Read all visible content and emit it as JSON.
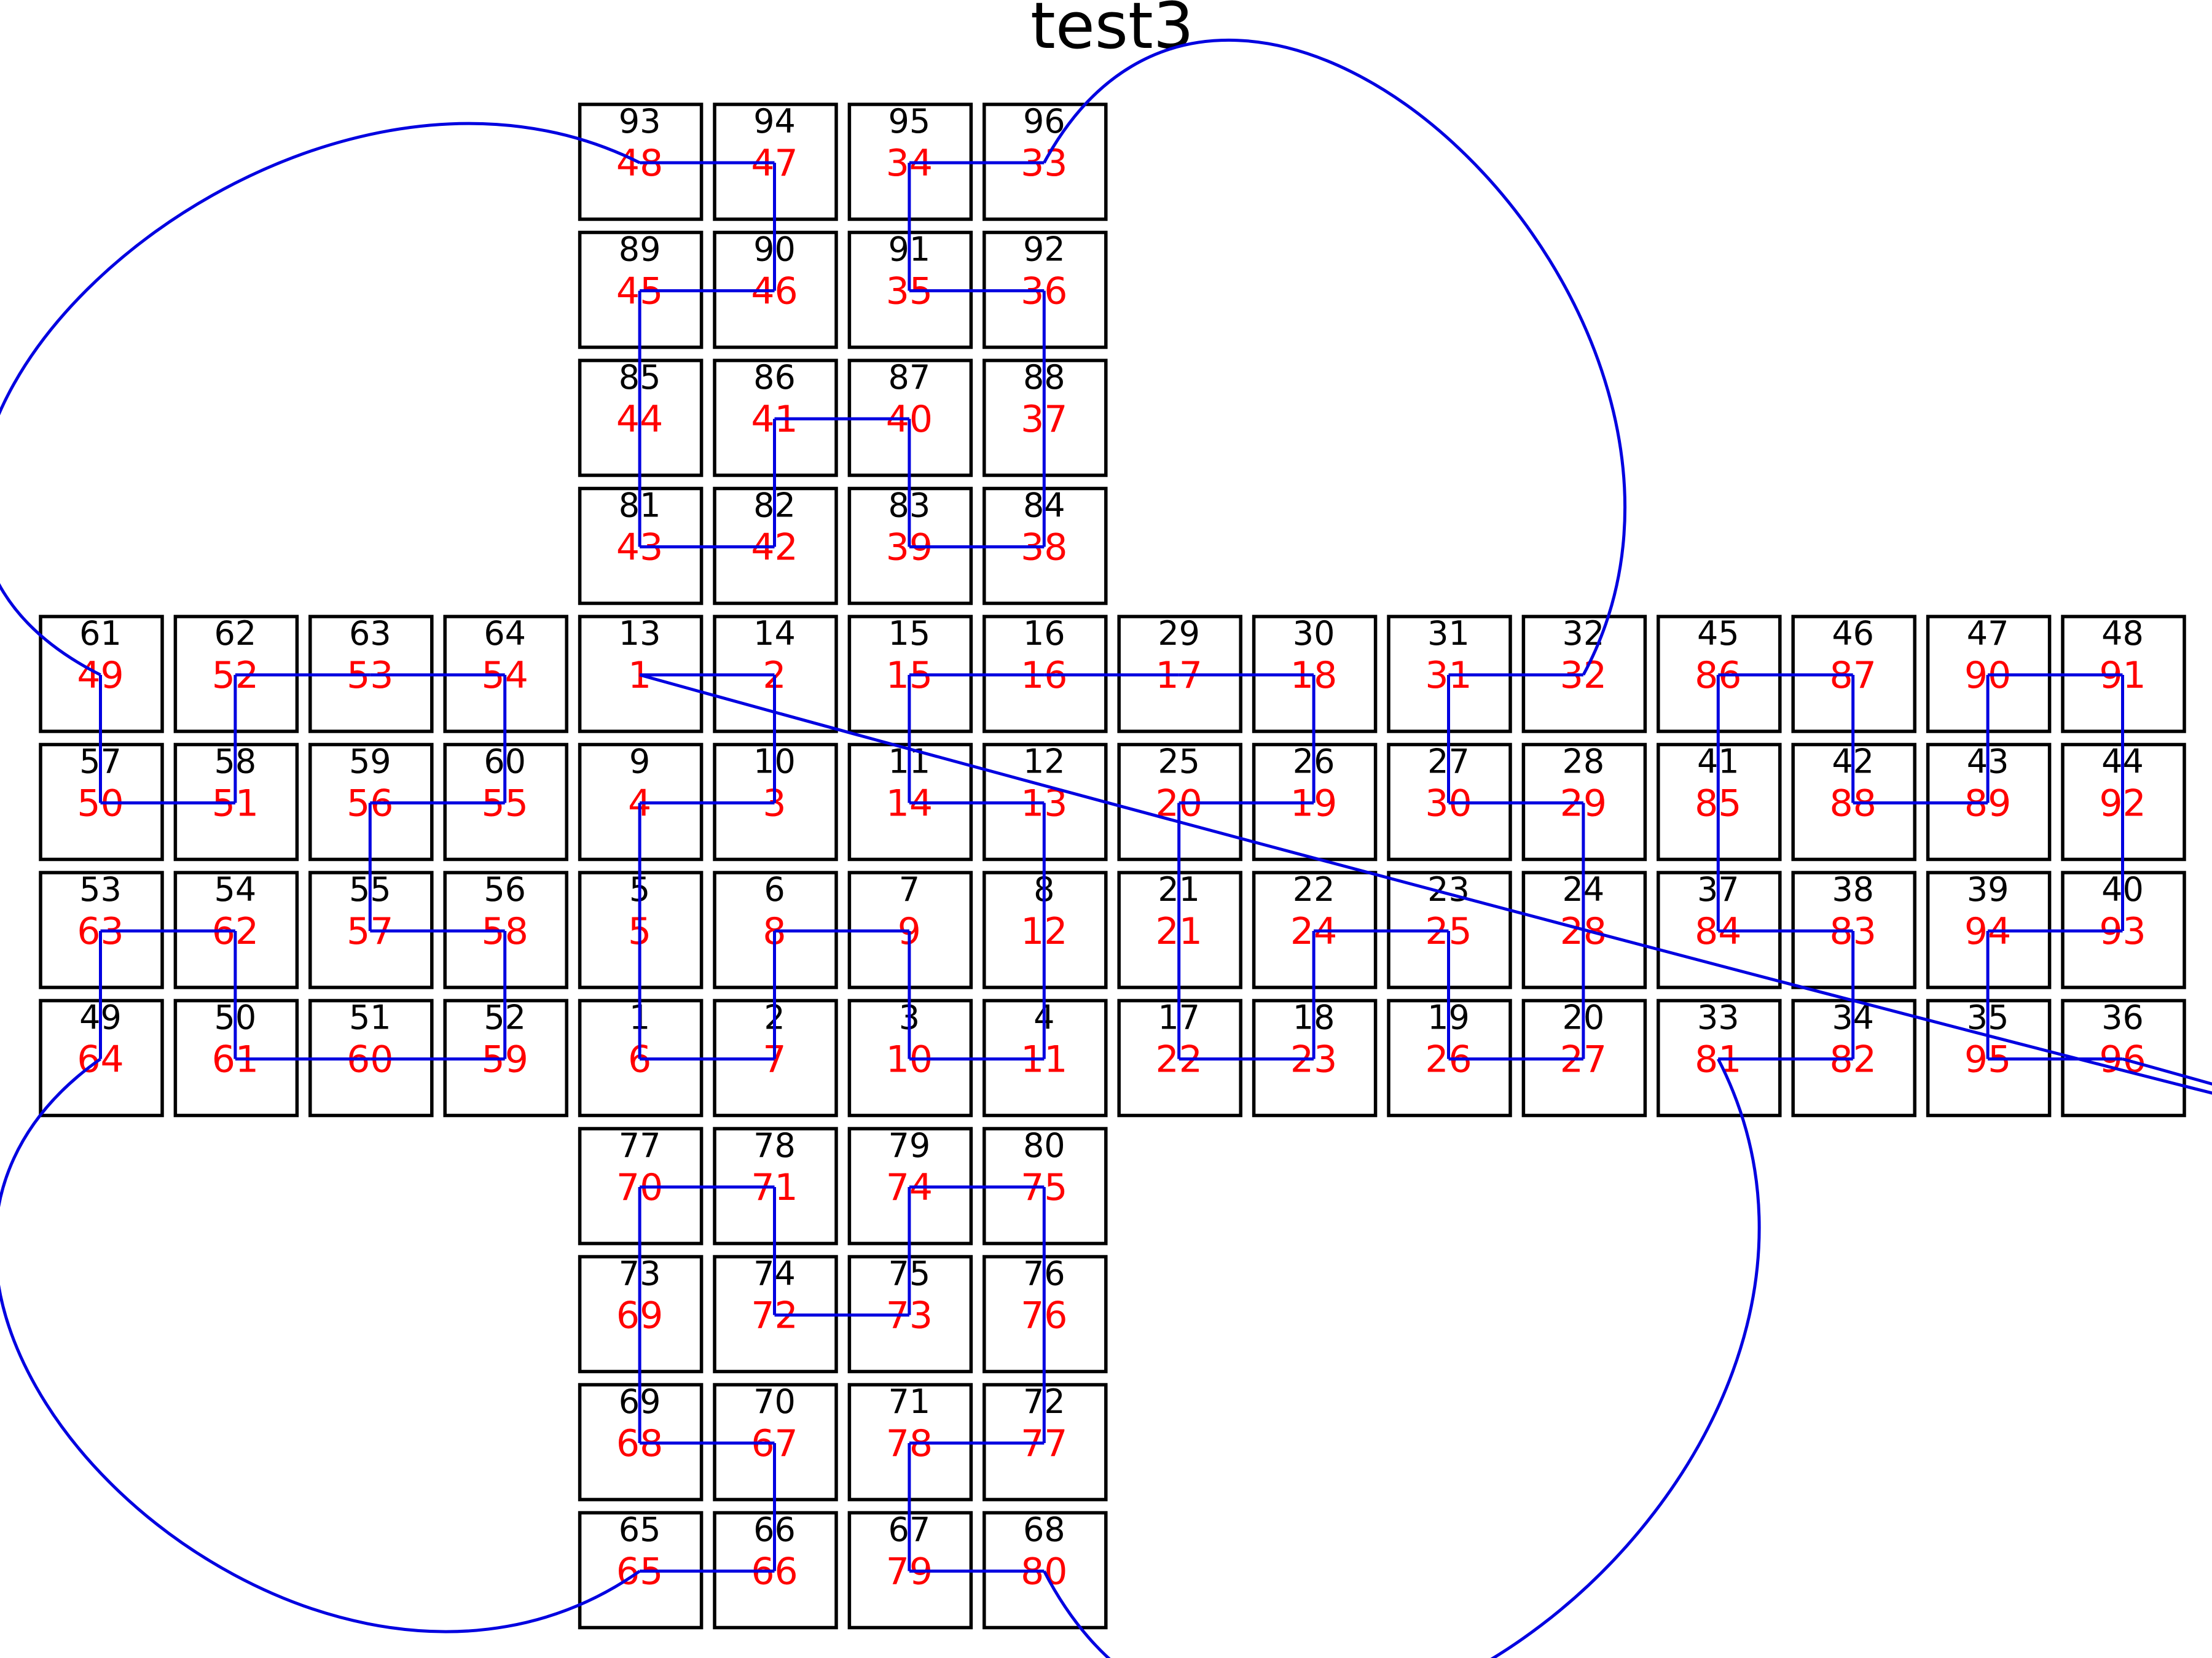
{
  "title": "test3",
  "colors": {
    "box_stroke": "#000000",
    "id_text": "#000000",
    "order_text": "#ff0000",
    "route": "#0000e0"
  },
  "cells": [
    {
      "col": 4,
      "row": 0,
      "id": "93",
      "order": "48"
    },
    {
      "col": 5,
      "row": 0,
      "id": "94",
      "order": "47"
    },
    {
      "col": 6,
      "row": 0,
      "id": "95",
      "order": "34"
    },
    {
      "col": 7,
      "row": 0,
      "id": "96",
      "order": "33"
    },
    {
      "col": 4,
      "row": 1,
      "id": "89",
      "order": "45"
    },
    {
      "col": 5,
      "row": 1,
      "id": "90",
      "order": "46"
    },
    {
      "col": 6,
      "row": 1,
      "id": "91",
      "order": "35"
    },
    {
      "col": 7,
      "row": 1,
      "id": "92",
      "order": "36"
    },
    {
      "col": 4,
      "row": 2,
      "id": "85",
      "order": "44"
    },
    {
      "col": 5,
      "row": 2,
      "id": "86",
      "order": "41"
    },
    {
      "col": 6,
      "row": 2,
      "id": "87",
      "order": "40"
    },
    {
      "col": 7,
      "row": 2,
      "id": "88",
      "order": "37"
    },
    {
      "col": 4,
      "row": 3,
      "id": "81",
      "order": "43"
    },
    {
      "col": 5,
      "row": 3,
      "id": "82",
      "order": "42"
    },
    {
      "col": 6,
      "row": 3,
      "id": "83",
      "order": "39"
    },
    {
      "col": 7,
      "row": 3,
      "id": "84",
      "order": "38"
    },
    {
      "col": 0,
      "row": 4,
      "id": "61",
      "order": "49"
    },
    {
      "col": 1,
      "row": 4,
      "id": "62",
      "order": "52"
    },
    {
      "col": 2,
      "row": 4,
      "id": "63",
      "order": "53"
    },
    {
      "col": 3,
      "row": 4,
      "id": "64",
      "order": "54"
    },
    {
      "col": 4,
      "row": 4,
      "id": "13",
      "order": "1"
    },
    {
      "col": 5,
      "row": 4,
      "id": "14",
      "order": "2"
    },
    {
      "col": 6,
      "row": 4,
      "id": "15",
      "order": "15"
    },
    {
      "col": 7,
      "row": 4,
      "id": "16",
      "order": "16"
    },
    {
      "col": 8,
      "row": 4,
      "id": "29",
      "order": "17"
    },
    {
      "col": 9,
      "row": 4,
      "id": "30",
      "order": "18"
    },
    {
      "col": 10,
      "row": 4,
      "id": "31",
      "order": "31"
    },
    {
      "col": 11,
      "row": 4,
      "id": "32",
      "order": "32"
    },
    {
      "col": 12,
      "row": 4,
      "id": "45",
      "order": "86"
    },
    {
      "col": 13,
      "row": 4,
      "id": "46",
      "order": "87"
    },
    {
      "col": 14,
      "row": 4,
      "id": "47",
      "order": "90"
    },
    {
      "col": 15,
      "row": 4,
      "id": "48",
      "order": "91"
    },
    {
      "col": 0,
      "row": 5,
      "id": "57",
      "order": "50"
    },
    {
      "col": 1,
      "row": 5,
      "id": "58",
      "order": "51"
    },
    {
      "col": 2,
      "row": 5,
      "id": "59",
      "order": "56"
    },
    {
      "col": 3,
      "row": 5,
      "id": "60",
      "order": "55"
    },
    {
      "col": 4,
      "row": 5,
      "id": "9",
      "order": "4"
    },
    {
      "col": 5,
      "row": 5,
      "id": "10",
      "order": "3"
    },
    {
      "col": 6,
      "row": 5,
      "id": "11",
      "order": "14"
    },
    {
      "col": 7,
      "row": 5,
      "id": "12",
      "order": "13"
    },
    {
      "col": 8,
      "row": 5,
      "id": "25",
      "order": "20"
    },
    {
      "col": 9,
      "row": 5,
      "id": "26",
      "order": "19"
    },
    {
      "col": 10,
      "row": 5,
      "id": "27",
      "order": "30"
    },
    {
      "col": 11,
      "row": 5,
      "id": "28",
      "order": "29"
    },
    {
      "col": 12,
      "row": 5,
      "id": "41",
      "order": "85"
    },
    {
      "col": 13,
      "row": 5,
      "id": "42",
      "order": "88"
    },
    {
      "col": 14,
      "row": 5,
      "id": "43",
      "order": "89"
    },
    {
      "col": 15,
      "row": 5,
      "id": "44",
      "order": "92"
    },
    {
      "col": 0,
      "row": 6,
      "id": "53",
      "order": "63"
    },
    {
      "col": 1,
      "row": 6,
      "id": "54",
      "order": "62"
    },
    {
      "col": 2,
      "row": 6,
      "id": "55",
      "order": "57"
    },
    {
      "col": 3,
      "row": 6,
      "id": "56",
      "order": "58"
    },
    {
      "col": 4,
      "row": 6,
      "id": "5",
      "order": "5"
    },
    {
      "col": 5,
      "row": 6,
      "id": "6",
      "order": "8"
    },
    {
      "col": 6,
      "row": 6,
      "id": "7",
      "order": "9"
    },
    {
      "col": 7,
      "row": 6,
      "id": "8",
      "order": "12"
    },
    {
      "col": 8,
      "row": 6,
      "id": "21",
      "order": "21"
    },
    {
      "col": 9,
      "row": 6,
      "id": "22",
      "order": "24"
    },
    {
      "col": 10,
      "row": 6,
      "id": "23",
      "order": "25"
    },
    {
      "col": 11,
      "row": 6,
      "id": "24",
      "order": "28"
    },
    {
      "col": 12,
      "row": 6,
      "id": "37",
      "order": "84"
    },
    {
      "col": 13,
      "row": 6,
      "id": "38",
      "order": "83"
    },
    {
      "col": 14,
      "row": 6,
      "id": "39",
      "order": "94"
    },
    {
      "col": 15,
      "row": 6,
      "id": "40",
      "order": "93"
    },
    {
      "col": 0,
      "row": 7,
      "id": "49",
      "order": "64"
    },
    {
      "col": 1,
      "row": 7,
      "id": "50",
      "order": "61"
    },
    {
      "col": 2,
      "row": 7,
      "id": "51",
      "order": "60"
    },
    {
      "col": 3,
      "row": 7,
      "id": "52",
      "order": "59"
    },
    {
      "col": 4,
      "row": 7,
      "id": "1",
      "order": "6"
    },
    {
      "col": 5,
      "row": 7,
      "id": "2",
      "order": "7"
    },
    {
      "col": 6,
      "row": 7,
      "id": "3",
      "order": "10"
    },
    {
      "col": 7,
      "row": 7,
      "id": "4",
      "order": "11"
    },
    {
      "col": 8,
      "row": 7,
      "id": "17",
      "order": "22"
    },
    {
      "col": 9,
      "row": 7,
      "id": "18",
      "order": "23"
    },
    {
      "col": 10,
      "row": 7,
      "id": "19",
      "order": "26"
    },
    {
      "col": 11,
      "row": 7,
      "id": "20",
      "order": "27"
    },
    {
      "col": 12,
      "row": 7,
      "id": "33",
      "order": "81"
    },
    {
      "col": 13,
      "row": 7,
      "id": "34",
      "order": "82"
    },
    {
      "col": 14,
      "row": 7,
      "id": "35",
      "order": "95"
    },
    {
      "col": 15,
      "row": 7,
      "id": "36",
      "order": "96"
    },
    {
      "col": 4,
      "row": 8,
      "id": "77",
      "order": "70"
    },
    {
      "col": 5,
      "row": 8,
      "id": "78",
      "order": "71"
    },
    {
      "col": 6,
      "row": 8,
      "id": "79",
      "order": "74"
    },
    {
      "col": 7,
      "row": 8,
      "id": "80",
      "order": "75"
    },
    {
      "col": 4,
      "row": 9,
      "id": "73",
      "order": "69"
    },
    {
      "col": 5,
      "row": 9,
      "id": "74",
      "order": "72"
    },
    {
      "col": 6,
      "row": 9,
      "id": "75",
      "order": "73"
    },
    {
      "col": 7,
      "row": 9,
      "id": "76",
      "order": "76"
    },
    {
      "col": 4,
      "row": 10,
      "id": "69",
      "order": "68"
    },
    {
      "col": 5,
      "row": 10,
      "id": "70",
      "order": "67"
    },
    {
      "col": 6,
      "row": 10,
      "id": "71",
      "order": "78"
    },
    {
      "col": 7,
      "row": 10,
      "id": "72",
      "order": "77"
    },
    {
      "col": 4,
      "row": 11,
      "id": "65",
      "order": "65"
    },
    {
      "col": 5,
      "row": 11,
      "id": "66",
      "order": "66"
    },
    {
      "col": 6,
      "row": 11,
      "id": "67",
      "order": "79"
    },
    {
      "col": 7,
      "row": 11,
      "id": "68",
      "order": "80"
    }
  ]
}
